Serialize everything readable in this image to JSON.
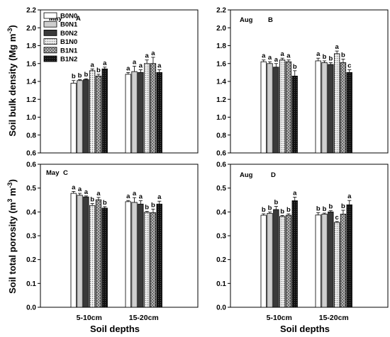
{
  "legend": [
    "B0N0",
    "B0N1",
    "B0N2",
    "B1N0",
    "B1N1",
    "B1N2"
  ],
  "colors": {
    "B0N0": "#ffffff",
    "B0N1": "#cfcfcf",
    "B0N2": "#3a3a3a",
    "B1N0": "#e2e2e2",
    "B1N1": "#9a9a9a",
    "B1N2": "#151515"
  },
  "ylabels": {
    "top": [
      "Soil bulk density (Mg m",
      "-3",
      ")"
    ],
    "bottom": [
      "Soil total porosity (m",
      "3",
      " m",
      "-3",
      ")"
    ]
  },
  "xlabel": "Soil depths",
  "chart_data": [
    {
      "type": "bar",
      "month": "May",
      "panel": "A",
      "categories": [
        "5-10cm",
        "15-20cm"
      ],
      "ylim": [
        0.6,
        2.2
      ],
      "yticks": [
        0.6,
        0.8,
        1.0,
        1.2,
        1.4,
        1.6,
        1.8,
        2.0,
        2.2
      ],
      "decimals": 1,
      "series": [
        {
          "name": "B0N0",
          "values": [
            1.38,
            1.48
          ],
          "errors": [
            0.03,
            0.02
          ],
          "letters": [
            "b",
            "a"
          ]
        },
        {
          "name": "B0N1",
          "values": [
            1.41,
            1.51
          ],
          "errors": [
            0.01,
            0.06
          ],
          "letters": [
            "b",
            "a"
          ]
        },
        {
          "name": "B0N2",
          "values": [
            1.42,
            1.5
          ],
          "errors": [
            0.01,
            0.03
          ],
          "letters": [
            "b",
            "a"
          ]
        },
        {
          "name": "B1N0",
          "values": [
            1.52,
            1.6
          ],
          "errors": [
            0.02,
            0.04
          ],
          "letters": [
            "a",
            "a"
          ]
        },
        {
          "name": "B1N1",
          "values": [
            1.46,
            1.6
          ],
          "errors": [
            0.02,
            0.07
          ],
          "letters": [
            "b",
            "a"
          ]
        },
        {
          "name": "B1N2",
          "values": [
            1.54,
            1.5
          ],
          "errors": [
            0.02,
            0.03
          ],
          "letters": [
            "a",
            "a"
          ]
        }
      ]
    },
    {
      "type": "bar",
      "month": "Aug",
      "panel": "B",
      "categories": [
        "5-10cm",
        "15-20cm"
      ],
      "ylim": [
        0.6,
        2.2
      ],
      "yticks": [
        0.6,
        0.8,
        1.0,
        1.2,
        1.4,
        1.6,
        1.8,
        2.0,
        2.2
      ],
      "decimals": 1,
      "series": [
        {
          "name": "B0N0",
          "values": [
            1.62,
            1.63
          ],
          "errors": [
            0.02,
            0.03
          ],
          "letters": [
            "a",
            "a"
          ]
        },
        {
          "name": "B0N1",
          "values": [
            1.6,
            1.61
          ],
          "errors": [
            0.02,
            0.02
          ],
          "letters": [
            "a",
            "b"
          ]
        },
        {
          "name": "B0N2",
          "values": [
            1.56,
            1.59
          ],
          "errors": [
            0.04,
            0.02
          ],
          "letters": [
            "a",
            "b"
          ]
        },
        {
          "name": "B1N0",
          "values": [
            1.64,
            1.71
          ],
          "errors": [
            0.02,
            0.03
          ],
          "letters": [
            "a",
            "a"
          ]
        },
        {
          "name": "B1N1",
          "values": [
            1.62,
            1.61
          ],
          "errors": [
            0.02,
            0.04
          ],
          "letters": [
            "a",
            "b"
          ]
        },
        {
          "name": "B1N2",
          "values": [
            1.46,
            1.5
          ],
          "errors": [
            0.06,
            0.03
          ],
          "letters": [
            "b",
            "c"
          ]
        }
      ]
    },
    {
      "type": "bar",
      "month": "May",
      "panel": "C",
      "categories": [
        "5-10cm",
        "15-20cm"
      ],
      "ylim": [
        0.0,
        0.6
      ],
      "yticks": [
        0.0,
        0.1,
        0.2,
        0.3,
        0.4,
        0.5,
        0.6
      ],
      "decimals": 1,
      "series": [
        {
          "name": "B0N0",
          "values": [
            0.478,
            0.443
          ],
          "errors": [
            0.008,
            0.005
          ],
          "letters": [
            "a",
            "a"
          ]
        },
        {
          "name": "B0N1",
          "values": [
            0.47,
            0.44
          ],
          "errors": [
            0.008,
            0.02
          ],
          "letters": [
            "a",
            "a"
          ]
        },
        {
          "name": "B0N2",
          "values": [
            0.463,
            0.433
          ],
          "errors": [
            0.004,
            0.014
          ],
          "letters": [
            "a",
            "a"
          ]
        },
        {
          "name": "B1N0",
          "values": [
            0.427,
            0.398
          ],
          "errors": [
            0.008,
            0.004
          ],
          "letters": [
            "b",
            "b"
          ]
        },
        {
          "name": "B1N1",
          "values": [
            0.451,
            0.397
          ],
          "errors": [
            0.01,
            0.015
          ],
          "letters": [
            "a",
            "b"
          ]
        },
        {
          "name": "B1N2",
          "values": [
            0.416,
            0.433
          ],
          "errors": [
            0.006,
            0.012
          ],
          "letters": [
            "b",
            "a"
          ]
        }
      ]
    },
    {
      "type": "bar",
      "month": "Aug",
      "panel": "D",
      "categories": [
        "5-10cm",
        "15-20cm"
      ],
      "ylim": [
        0.0,
        0.6
      ],
      "yticks": [
        0.0,
        0.1,
        0.2,
        0.3,
        0.4,
        0.5,
        0.6
      ],
      "decimals": 1,
      "series": [
        {
          "name": "B0N0",
          "values": [
            0.386,
            0.387
          ],
          "errors": [
            0.006,
            0.01
          ],
          "letters": [
            "b",
            "b"
          ]
        },
        {
          "name": "B0N1",
          "values": [
            0.394,
            0.391
          ],
          "errors": [
            0.006,
            0.004
          ],
          "letters": [
            "b",
            "b"
          ]
        },
        {
          "name": "B0N2",
          "values": [
            0.41,
            0.4
          ],
          "errors": [
            0.013,
            0.005
          ],
          "letters": [
            "b",
            "b"
          ]
        },
        {
          "name": "B1N0",
          "values": [
            0.381,
            0.356
          ],
          "errors": [
            0.004,
            0.004
          ],
          "letters": [
            "b",
            "c"
          ]
        },
        {
          "name": "B1N1",
          "values": [
            0.386,
            0.391
          ],
          "errors": [
            0.006,
            0.016
          ],
          "letters": [
            "b",
            "b"
          ]
        },
        {
          "name": "B1N2",
          "values": [
            0.447,
            0.43
          ],
          "errors": [
            0.015,
            0.018
          ],
          "letters": [
            "a",
            "a"
          ]
        }
      ]
    }
  ]
}
